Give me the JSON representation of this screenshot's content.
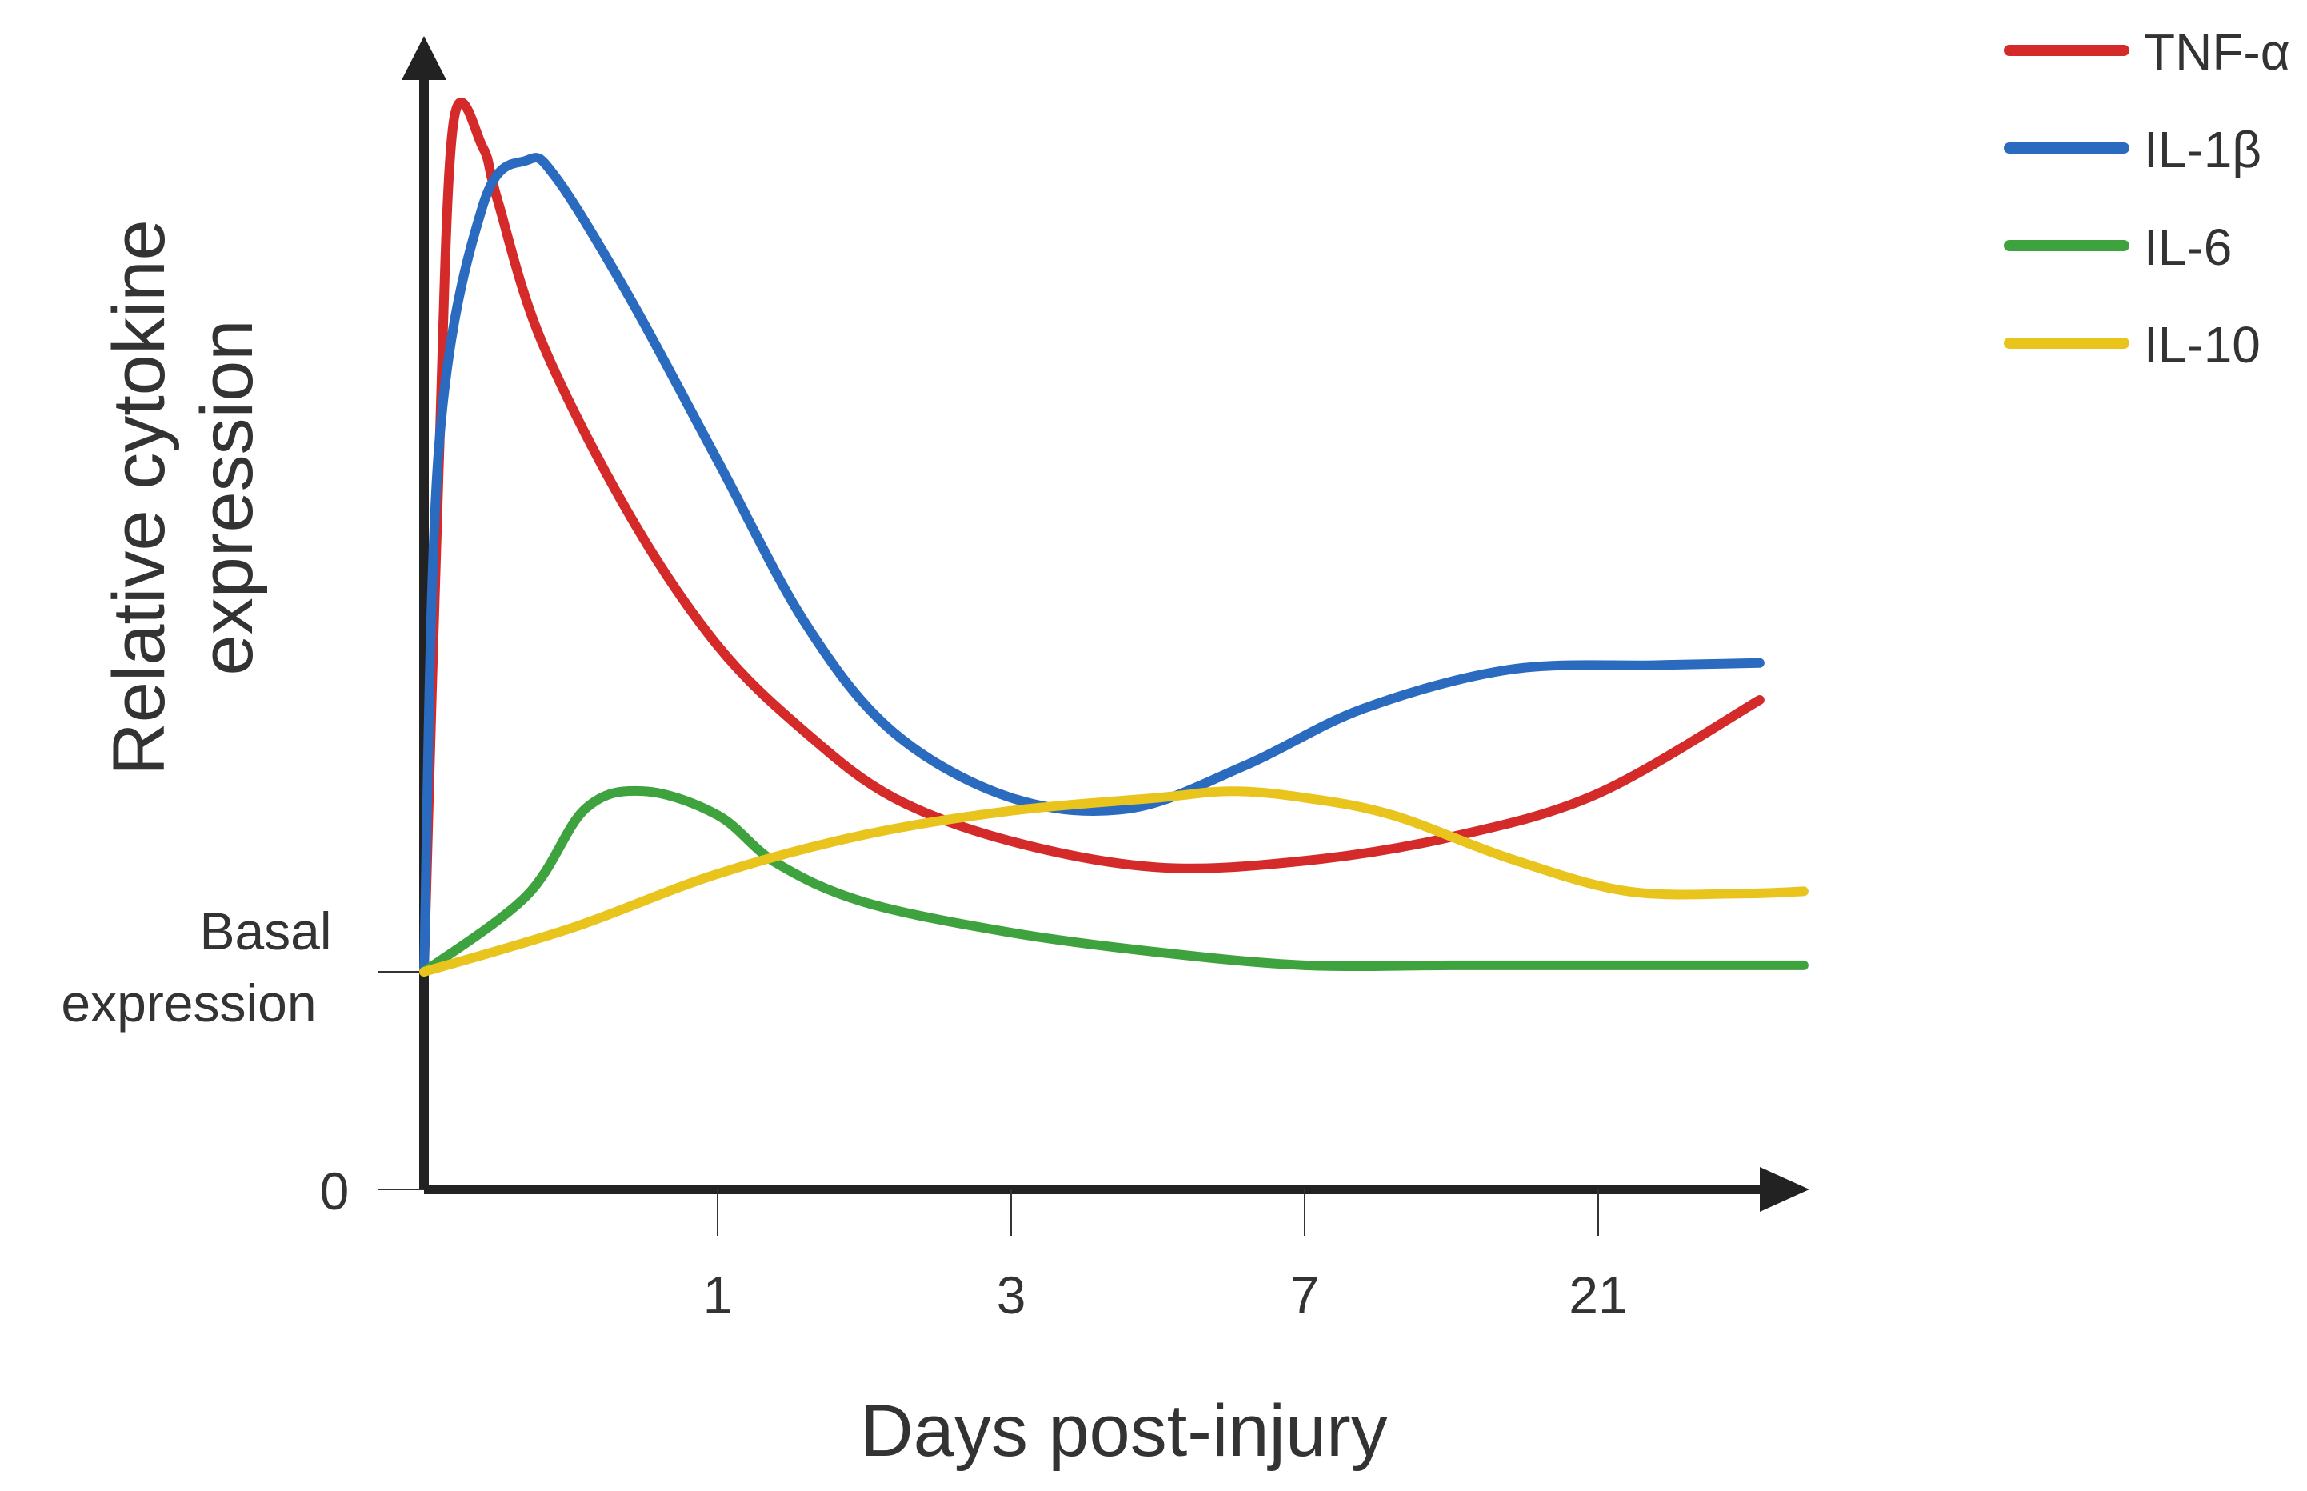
{
  "chart_data": {
    "type": "line",
    "title": "",
    "xlabel": "Days post-injury",
    "ylabel": "Relative cytokine expression",
    "ylabel_lines": [
      "Relative cytokine",
      "expression"
    ],
    "x_ticks": [
      "1",
      "3",
      "7",
      "21"
    ],
    "y_ticks": [
      {
        "label": "0",
        "value": 0
      },
      {
        "label": "Basal expression",
        "lines": [
          "Basal",
          "expression"
        ],
        "value": 1
      }
    ],
    "xlim": [
      0,
      4.7
    ],
    "ylim": [
      0,
      5.0
    ],
    "legend_position": "top-right",
    "grid": false,
    "series": [
      {
        "name": "TNF-α",
        "color": "#d42a2a",
        "points": [
          [
            0,
            1
          ],
          [
            0.05,
            3.3
          ],
          [
            0.1,
            4.9
          ],
          [
            0.2,
            4.79
          ],
          [
            0.25,
            4.55
          ],
          [
            0.4,
            3.9
          ],
          [
            0.7,
            3.1
          ],
          [
            1.0,
            2.5
          ],
          [
            1.3,
            2.1
          ],
          [
            1.6,
            1.8
          ],
          [
            2.0,
            1.6
          ],
          [
            2.5,
            1.48
          ],
          [
            3.0,
            1.51
          ],
          [
            3.5,
            1.62
          ],
          [
            4.0,
            1.82
          ],
          [
            4.55,
            2.25
          ]
        ]
      },
      {
        "name": "IL-1β",
        "color": "#2a6abf",
        "points": [
          [
            0,
            1
          ],
          [
            0.05,
            3.4
          ],
          [
            0.2,
            4.52
          ],
          [
            0.35,
            4.73
          ],
          [
            0.45,
            4.65
          ],
          [
            0.7,
            4.1
          ],
          [
            1.0,
            3.35
          ],
          [
            1.3,
            2.6
          ],
          [
            1.6,
            2.1
          ],
          [
            2.0,
            1.8
          ],
          [
            2.4,
            1.75
          ],
          [
            2.8,
            1.95
          ],
          [
            3.2,
            2.21
          ],
          [
            3.7,
            2.39
          ],
          [
            4.2,
            2.41
          ],
          [
            4.55,
            2.42
          ]
        ]
      },
      {
        "name": "IL-6",
        "color": "#3ea33e",
        "points": [
          [
            0,
            1
          ],
          [
            0.35,
            1.35
          ],
          [
            0.55,
            1.75
          ],
          [
            0.75,
            1.83
          ],
          [
            1.0,
            1.72
          ],
          [
            1.2,
            1.5
          ],
          [
            1.5,
            1.32
          ],
          [
            2.0,
            1.18
          ],
          [
            2.5,
            1.09
          ],
          [
            3.0,
            1.03
          ],
          [
            3.5,
            1.03
          ],
          [
            4.0,
            1.03
          ],
          [
            4.7,
            1.03
          ]
        ]
      },
      {
        "name": "IL-10",
        "color": "#e8c41c",
        "points": [
          [
            0,
            1
          ],
          [
            0.5,
            1.2
          ],
          [
            1.0,
            1.45
          ],
          [
            1.5,
            1.63
          ],
          [
            2.0,
            1.74
          ],
          [
            2.5,
            1.8
          ],
          [
            2.75,
            1.83
          ],
          [
            3.0,
            1.8
          ],
          [
            3.3,
            1.72
          ],
          [
            3.7,
            1.52
          ],
          [
            4.1,
            1.37
          ],
          [
            4.5,
            1.36
          ],
          [
            4.7,
            1.37
          ]
        ]
      }
    ]
  }
}
